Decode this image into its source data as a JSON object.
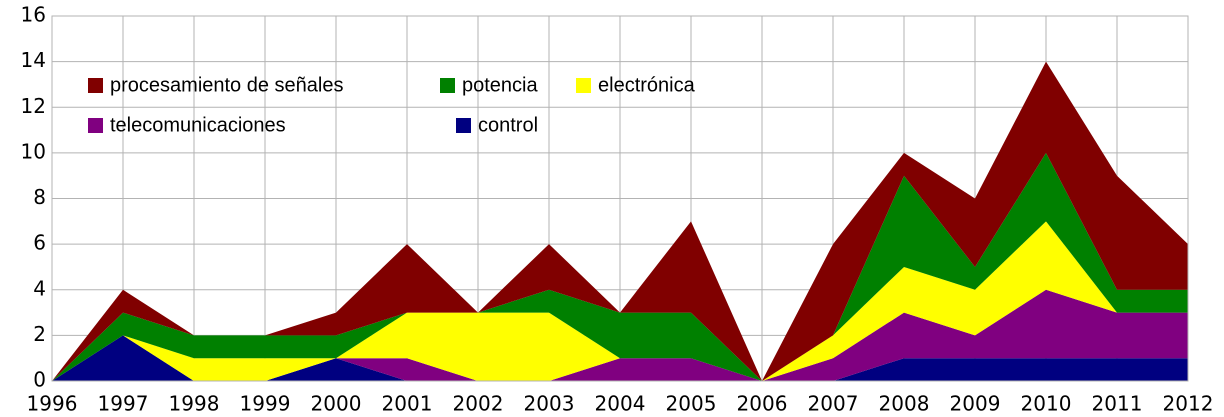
{
  "chart_data": {
    "type": "stacked_area",
    "categories": [
      "1996",
      "1997",
      "1998",
      "1999",
      "2000",
      "2001",
      "2002",
      "2003",
      "2004",
      "2005",
      "2006",
      "2007",
      "2008",
      "2009",
      "2010",
      "2011",
      "2012"
    ],
    "series": [
      {
        "name": "control",
        "color": "#000080",
        "values": [
          0,
          2,
          0,
          0,
          1,
          0,
          0,
          0,
          0,
          0,
          0,
          0,
          1,
          1,
          1,
          1,
          1
        ]
      },
      {
        "name": "telecomunicaciones",
        "color": "#800080",
        "values": [
          0,
          0,
          0,
          0,
          0,
          1,
          0,
          0,
          1,
          1,
          0,
          1,
          2,
          1,
          3,
          2,
          2
        ]
      },
      {
        "name": "electrónica",
        "color": "#ffff00",
        "values": [
          0,
          0,
          1,
          1,
          0,
          2,
          3,
          3,
          0,
          0,
          0,
          1,
          2,
          2,
          3,
          0,
          0
        ]
      },
      {
        "name": "potencia",
        "color": "#008000",
        "values": [
          0,
          1,
          1,
          1,
          1,
          0,
          0,
          1,
          2,
          2,
          0,
          0,
          4,
          1,
          3,
          1,
          1
        ]
      },
      {
        "name": "procesamiento de señales",
        "color": "#800000",
        "values": [
          0,
          1,
          0,
          0,
          1,
          3,
          0,
          2,
          0,
          4,
          0,
          4,
          1,
          3,
          4,
          5,
          2
        ]
      }
    ],
    "ylim": [
      0,
      16
    ],
    "yticks": [
      0,
      2,
      4,
      6,
      8,
      10,
      12,
      14,
      16
    ],
    "grid": true
  }
}
